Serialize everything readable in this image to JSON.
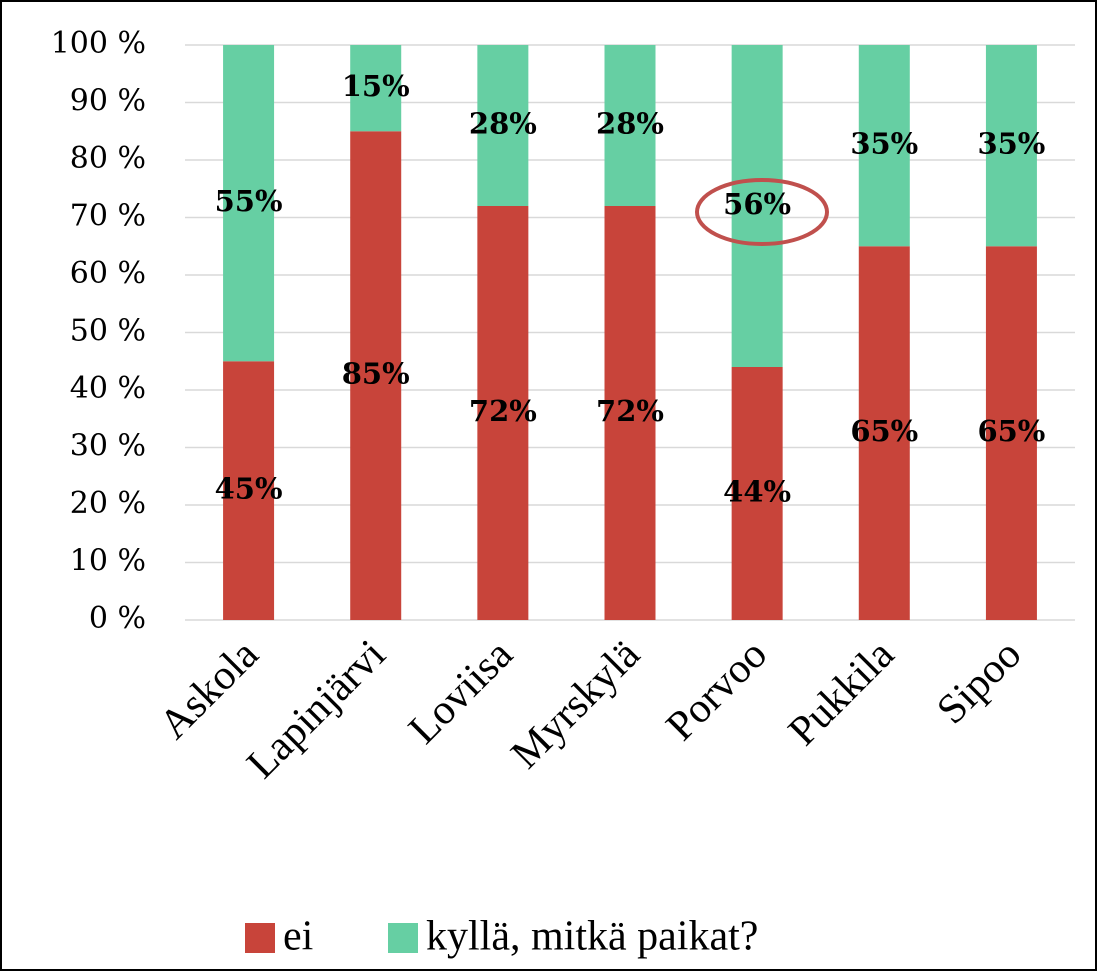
{
  "chart_data": {
    "type": "stacked_bar",
    "categories": [
      "Askola",
      "Lapinjärvi",
      "Loviisa",
      "Myrskylä",
      "Porvoo",
      "Pukkila",
      "Sipoo"
    ],
    "series": [
      {
        "name": "ei",
        "color": "#c8443a",
        "values": [
          45,
          85,
          72,
          72,
          44,
          65,
          65
        ],
        "value_labels": [
          "45%",
          "85%",
          "72%",
          "72%",
          "44%",
          "65%",
          "65%"
        ]
      },
      {
        "name": "kyllä, mitkä paikat?",
        "color": "#66cfa3",
        "values": [
          55,
          15,
          28,
          28,
          56,
          35,
          35
        ],
        "value_labels": [
          "55%",
          "15%",
          "28%",
          "28%",
          "56%",
          "35%",
          "35%"
        ]
      }
    ],
    "ylim": [
      0,
      100
    ],
    "yticks": [
      {
        "value": 0,
        "label": "0 %"
      },
      {
        "value": 10,
        "label": "10 %"
      },
      {
        "value": 20,
        "label": "20 %"
      },
      {
        "value": 30,
        "label": "30 %"
      },
      {
        "value": 40,
        "label": "40 %"
      },
      {
        "value": 50,
        "label": "50 %"
      },
      {
        "value": 60,
        "label": "60 %"
      },
      {
        "value": 70,
        "label": "70 %"
      },
      {
        "value": 80,
        "label": "80 %"
      },
      {
        "value": 90,
        "label": "90 %"
      },
      {
        "value": 100,
        "label": "100 %"
      }
    ],
    "grid": true,
    "legend": "bottom"
  }
}
